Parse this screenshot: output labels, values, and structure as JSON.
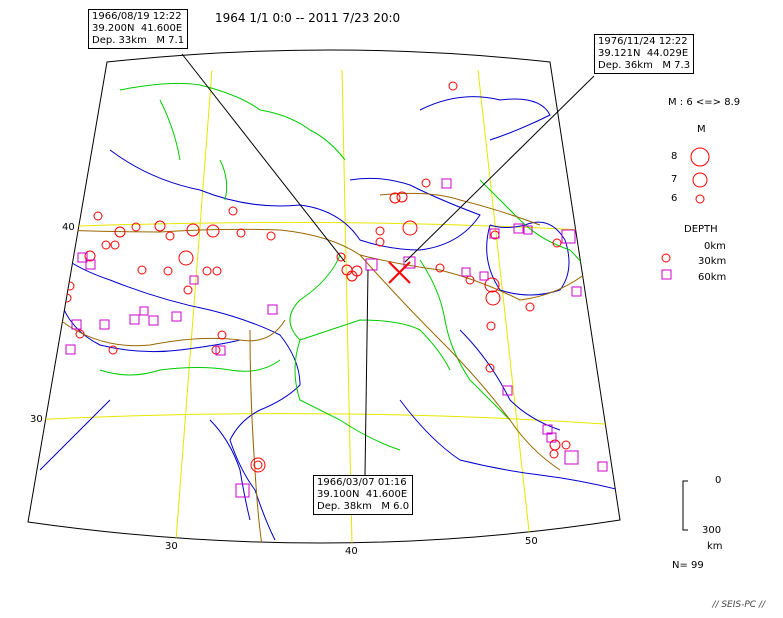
{
  "title": "1964 1/1 0:0 -- 2011 7/23 20:0",
  "colors": {
    "coast": "#0000cc",
    "border": "#00cc00",
    "plate": "#996600",
    "grid": "#e6e600",
    "shallow": "#ff0000",
    "deep": "#cc00cc"
  },
  "grid_labels": {
    "lat": [
      "40",
      "30"
    ],
    "lon": [
      "30",
      "40",
      "50"
    ]
  },
  "callouts": [
    {
      "line1": "1966/08/19 12:22",
      "line2": "39.200N  41.600E",
      "line3": "Dep. 33km   M 7.1"
    },
    {
      "line1": "1976/11/24 12:22",
      "line2": "39.121N  44.029E",
      "line3": "Dep. 36km   M 7.3"
    },
    {
      "line1": "1966/03/07 01:16",
      "line2": "39.100N  41.600E",
      "line3": "Dep. 38km   M 6.0"
    }
  ],
  "legend": {
    "mag_range": "M : 6 <=> 8.9",
    "mag_title": "M",
    "mag_items": [
      "8",
      "7",
      "6"
    ],
    "depth_title": "DEPTH",
    "depth_items": [
      "0km",
      "30km",
      "60km"
    ],
    "scale_top": "0",
    "scale_bottom": "300",
    "scale_unit": "km",
    "count": "N= 99"
  },
  "credit": "// SEIS-PC //"
}
